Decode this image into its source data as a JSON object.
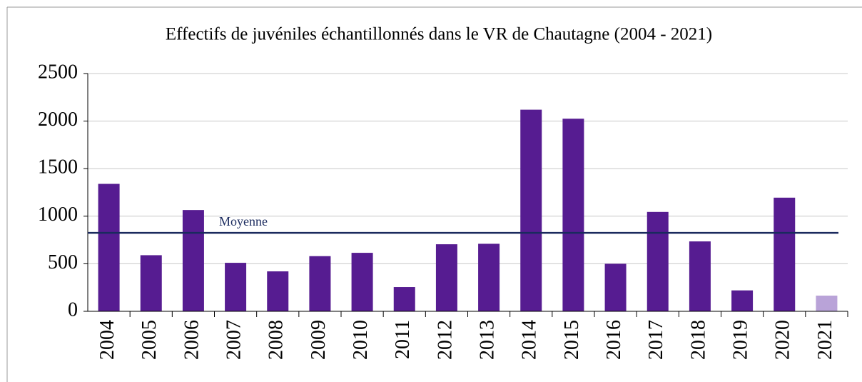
{
  "chart_data": {
    "type": "bar",
    "title": "Effectifs de juvéniles échantillonnés dans le VR de Chautagne (2004 - 2021)",
    "categories": [
      "2004",
      "2005",
      "2006",
      "2007",
      "2008",
      "2009",
      "2010",
      "2011",
      "2012",
      "2013",
      "2014",
      "2015",
      "2016",
      "2017",
      "2018",
      "2019",
      "2020",
      "2021"
    ],
    "values": [
      1340,
      590,
      1065,
      510,
      420,
      580,
      615,
      255,
      705,
      710,
      2120,
      2025,
      500,
      1045,
      735,
      220,
      1195,
      165
    ],
    "colors": [
      "#561c91",
      "#561c91",
      "#561c91",
      "#561c91",
      "#561c91",
      "#561c91",
      "#561c91",
      "#561c91",
      "#561c91",
      "#561c91",
      "#561c91",
      "#561c91",
      "#561c91",
      "#561c91",
      "#561c91",
      "#561c91",
      "#561c91",
      "#b9a3d8"
    ],
    "ylim": [
      0,
      2500
    ],
    "yticks": [
      0,
      500,
      1000,
      1500,
      2000,
      2500
    ],
    "grid": true,
    "mean_line": {
      "label": "Moyenne",
      "value": 825,
      "color": "#1a2a5e"
    }
  }
}
